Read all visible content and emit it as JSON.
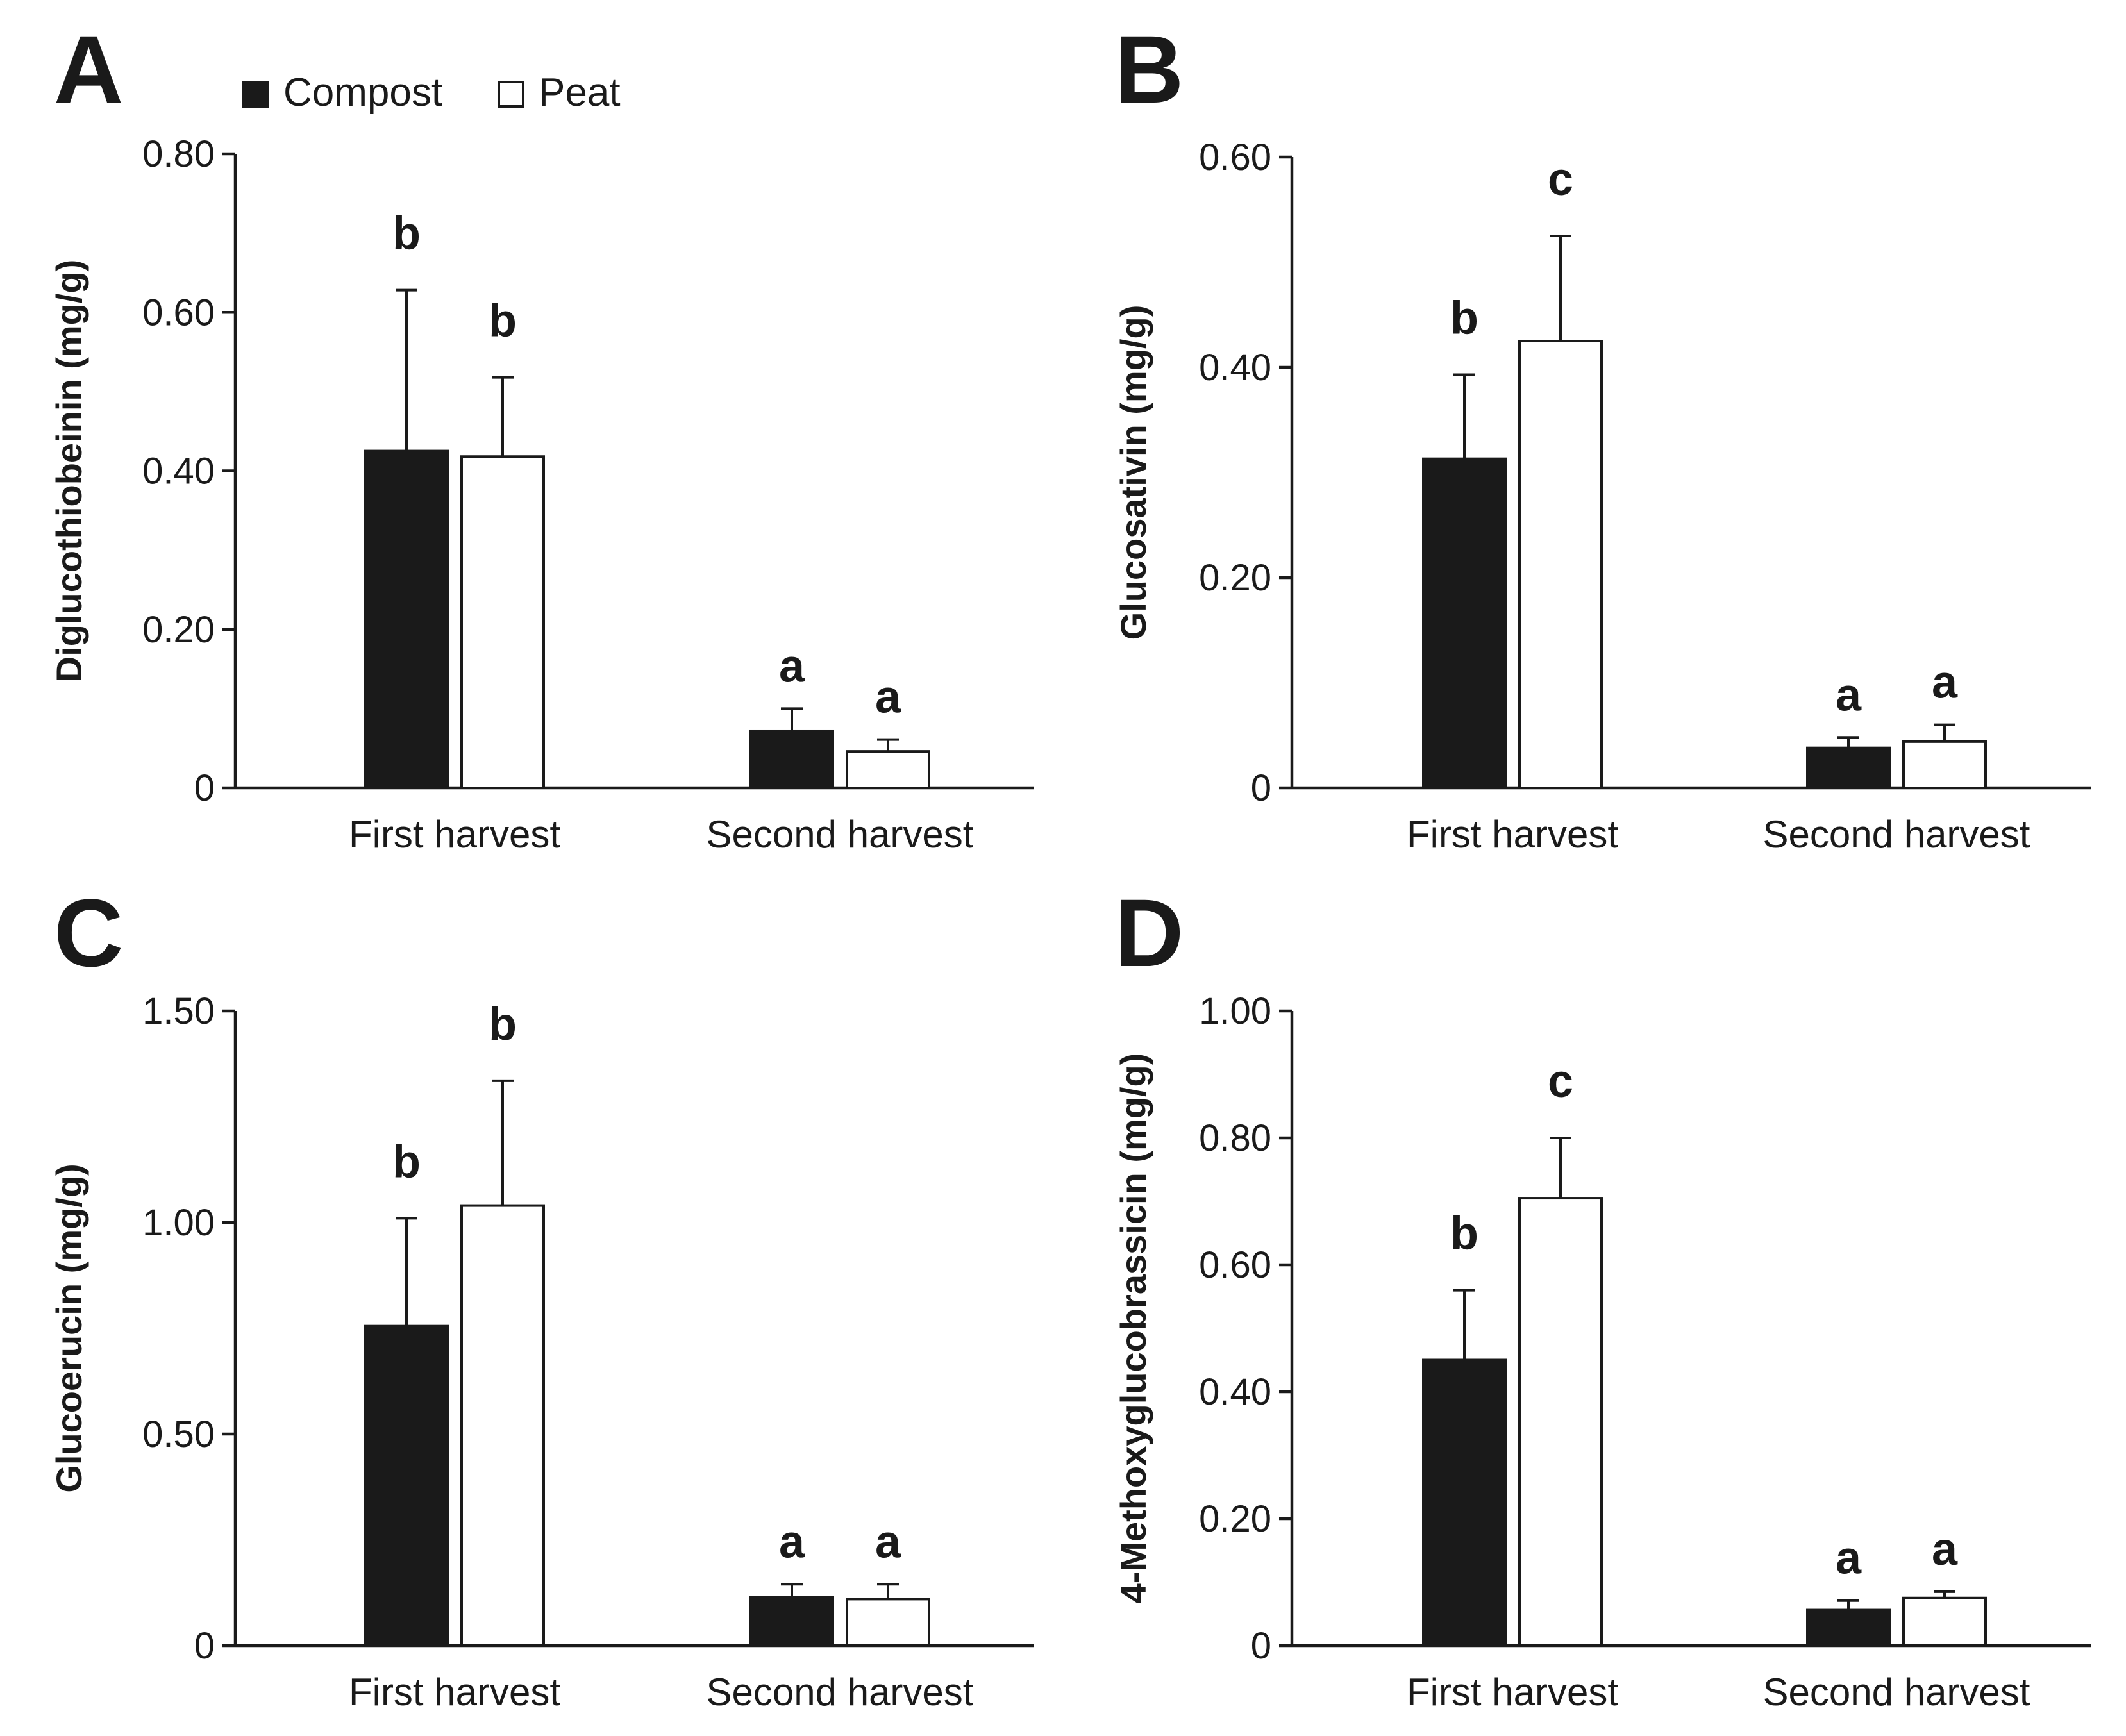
{
  "legend": {
    "items": [
      {
        "label": "Compost",
        "color": "#1a1a1a"
      },
      {
        "label": "Peat",
        "color": "#ffffff"
      }
    ]
  },
  "colors": {
    "compost": "#1a1a1a",
    "peat": "#ffffff",
    "axis": "#1a1a1a"
  },
  "chart_data": [
    {
      "panel": "A",
      "type": "bar",
      "categories": [
        "First harvest",
        "Second harvest"
      ],
      "ylabel": "Diglucothiobeinin (mg/g)",
      "ylim": [
        0,
        0.8
      ],
      "yticks": [
        0,
        0.2,
        0.4,
        0.6,
        0.8
      ],
      "yticklabels": [
        "0",
        "0.20",
        "0.40",
        "0.60",
        "0.80"
      ],
      "series": [
        {
          "name": "Compost",
          "values": [
            0.425,
            0.072
          ],
          "errors": [
            0.203,
            0.028
          ]
        },
        {
          "name": "Peat",
          "values": [
            0.418,
            0.046
          ],
          "errors": [
            0.1,
            0.015
          ]
        }
      ],
      "significance": [
        [
          "b",
          "b"
        ],
        [
          "a",
          "a"
        ]
      ]
    },
    {
      "panel": "B",
      "type": "bar",
      "categories": [
        "First harvest",
        "Second harvest"
      ],
      "ylabel": "Glucosativin (mg/g)",
      "ylim": [
        0,
        0.6
      ],
      "yticks": [
        0,
        0.2,
        0.4,
        0.6
      ],
      "yticklabels": [
        "0",
        "0.20",
        "0.40",
        "0.60"
      ],
      "series": [
        {
          "name": "Compost",
          "values": [
            0.313,
            0.038
          ],
          "errors": [
            0.08,
            0.01
          ]
        },
        {
          "name": "Peat",
          "values": [
            0.425,
            0.044
          ],
          "errors": [
            0.1,
            0.016
          ]
        }
      ],
      "significance": [
        [
          "b",
          "c"
        ],
        [
          "a",
          "a"
        ]
      ]
    },
    {
      "panel": "C",
      "type": "bar",
      "categories": [
        "First harvest",
        "Second harvest"
      ],
      "ylabel": "Glucoerucin (mg/g)",
      "ylim": [
        0,
        1.5
      ],
      "yticks": [
        0,
        0.5,
        1.0,
        1.5
      ],
      "yticklabels": [
        "0",
        "0.50",
        "1.00",
        "1.50"
      ],
      "series": [
        {
          "name": "Compost",
          "values": [
            0.755,
            0.115
          ],
          "errors": [
            0.255,
            0.03
          ]
        },
        {
          "name": "Peat",
          "values": [
            1.04,
            0.11
          ],
          "errors": [
            0.295,
            0.035
          ]
        }
      ],
      "significance": [
        [
          "b",
          "b"
        ],
        [
          "a",
          "a"
        ]
      ]
    },
    {
      "panel": "D",
      "type": "bar",
      "categories": [
        "First harvest",
        "Second harvest"
      ],
      "ylabel": "4-Methoxyglucobrassicin (mg/g)",
      "ylim": [
        0,
        1.0
      ],
      "yticks": [
        0,
        0.2,
        0.4,
        0.6,
        0.8,
        1.0
      ],
      "yticklabels": [
        "0",
        "0.20",
        "0.40",
        "0.60",
        "0.80",
        "1.00"
      ],
      "series": [
        {
          "name": "Compost",
          "values": [
            0.45,
            0.056
          ],
          "errors": [
            0.11,
            0.015
          ]
        },
        {
          "name": "Peat",
          "values": [
            0.705,
            0.075
          ],
          "errors": [
            0.095,
            0.01
          ]
        }
      ],
      "significance": [
        [
          "b",
          "c"
        ],
        [
          "a",
          "a"
        ]
      ]
    }
  ]
}
